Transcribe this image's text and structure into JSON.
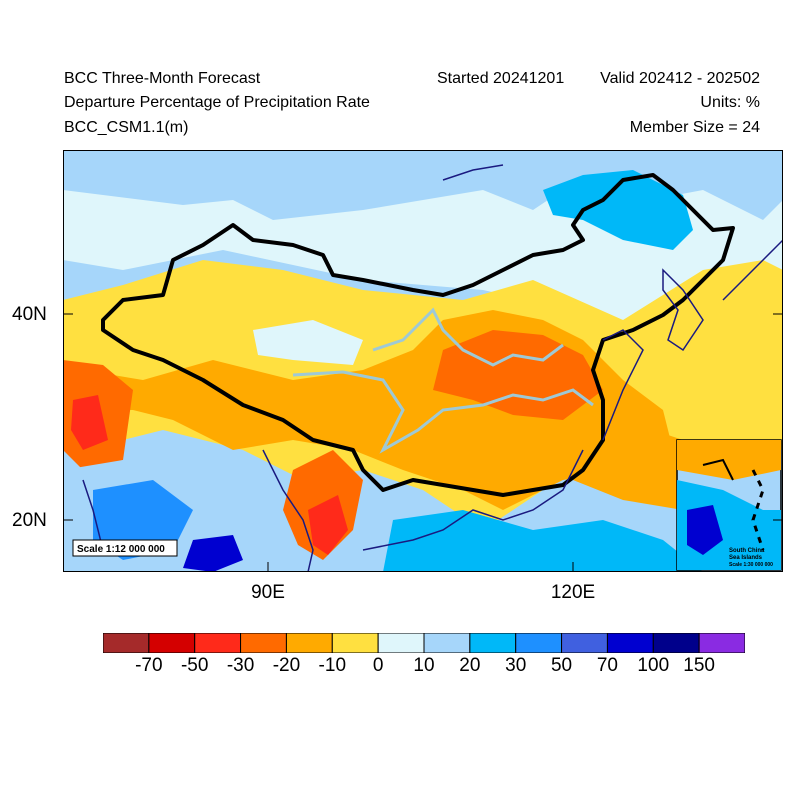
{
  "header": {
    "title": "BCC Three-Month Forecast",
    "variable": "Departure Percentage of Precipitation Rate",
    "model": "BCC_CSM1.1(m)",
    "started": "Started 20241201",
    "valid": "Valid 202412 - 202502",
    "units": "Units: %",
    "member_size": "Member Size = 24"
  },
  "map": {
    "lat_labels": [
      "40N",
      "20N"
    ],
    "lon_labels": [
      "90E",
      "120E"
    ],
    "scale_label": "Scale 1:12 000 000",
    "inset": {
      "title_line1": "South China",
      "title_line2": "Sea Islands",
      "scale": "Scale 1:30 000 000"
    },
    "colors": {
      "border": "#000000",
      "coast": "#1a1a80",
      "river": "#9ec9d6"
    }
  },
  "colorbar": {
    "ticks": [
      "-70",
      "-50",
      "-30",
      "-20",
      "-10",
      "0",
      "10",
      "20",
      "30",
      "50",
      "70",
      "100",
      "150"
    ],
    "colors": [
      "#a52a2a",
      "#d40000",
      "#ff2a1a",
      "#ff6a00",
      "#ffaa00",
      "#ffe040",
      "#dff6fb",
      "#a6d6fa",
      "#00b8f8",
      "#1e90ff",
      "#4060e0",
      "#0000d0",
      "#00008b",
      "#8a2be2"
    ]
  }
}
